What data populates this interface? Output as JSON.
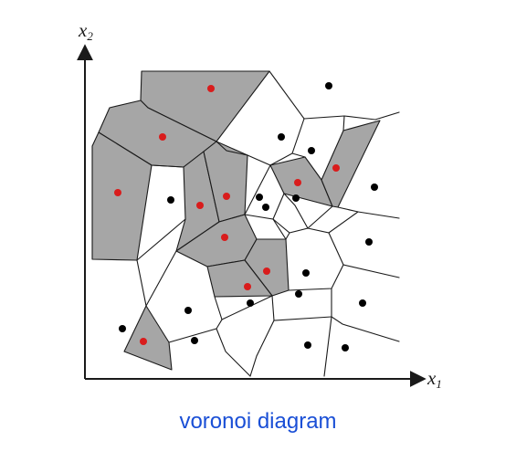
{
  "axes": {
    "x_label": "x",
    "x_sub": "1",
    "y_label": "x",
    "y_sub": "2"
  },
  "caption": "voronoi diagram",
  "colors": {
    "class_a_point": "#d91c1c",
    "class_b_point": "#000000",
    "shaded_cell": "#a6a6a6",
    "caption": "#1a4fd6"
  },
  "sites": {
    "red": [
      [
        231,
        97
      ],
      [
        178,
        150
      ],
      [
        129,
        211
      ],
      [
        219,
        225
      ],
      [
        248,
        215
      ],
      [
        246,
        260
      ],
      [
        292,
        297
      ],
      [
        271,
        314
      ],
      [
        326,
        200
      ],
      [
        368,
        184
      ],
      [
        157,
        374
      ]
    ],
    "black": [
      [
        360,
        94
      ],
      [
        308,
        150
      ],
      [
        341,
        165
      ],
      [
        187,
        219
      ],
      [
        284,
        216
      ],
      [
        291,
        227
      ],
      [
        324,
        217
      ],
      [
        410,
        205
      ],
      [
        404,
        265
      ],
      [
        335,
        299
      ],
      [
        327,
        322
      ],
      [
        274,
        332
      ],
      [
        206,
        340
      ],
      [
        134,
        360
      ],
      [
        213,
        373
      ],
      [
        337,
        378
      ],
      [
        378,
        381
      ],
      [
        397,
        332
      ]
    ]
  }
}
